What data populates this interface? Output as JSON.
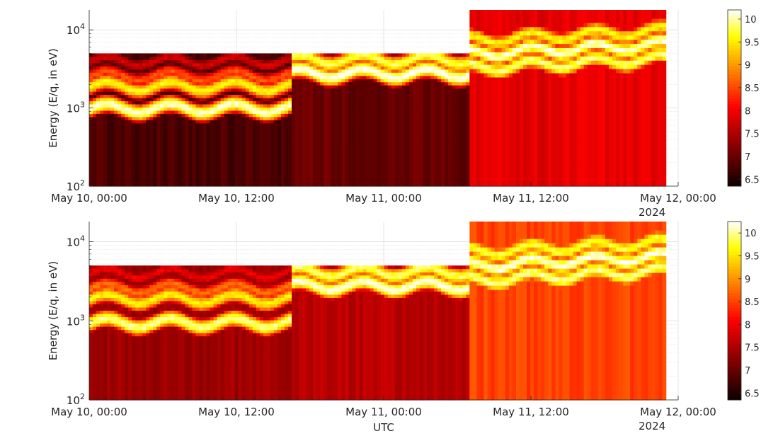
{
  "chart_data": [
    {
      "type": "heatmap",
      "title": "",
      "ylabel": "Energy (E/q, in eV)",
      "xlabel": "",
      "y_scale": "log",
      "ylim": [
        100,
        18000
      ],
      "y_ticks": [
        {
          "value": 100,
          "base": "10",
          "exp": "2"
        },
        {
          "value": 1000,
          "base": "10",
          "exp": "3"
        },
        {
          "value": 10000,
          "base": "10",
          "exp": "4"
        }
      ],
      "x_ticks": [
        "May 10, 00:00",
        "May 10, 12:00",
        "May 11, 00:00",
        "May 11, 12:00",
        "May 12, 00:00"
      ],
      "x_year_label": "2024",
      "xlim": [
        "2024-05-10 00:00",
        "2024-05-12 00:00"
      ],
      "grid": true,
      "colormap": "hot",
      "colorbar": {
        "ticks": [
          "6.5",
          "7",
          "7.5",
          "8",
          "8.5",
          "9",
          "9.5",
          "10"
        ],
        "range": [
          6.35,
          10.2
        ]
      },
      "segments": [
        {
          "x_start": "2024-05-10 00:00",
          "x_end": "2024-05-10 16:30",
          "emax": 5000,
          "bands": [
            [
              1000,
              10.1
            ],
            [
              1900,
              9.6
            ],
            [
              2600,
              8.6
            ],
            [
              4000,
              7.8
            ]
          ],
          "background": 6.8
        },
        {
          "x_start": "2024-05-10 16:30",
          "x_end": "2024-05-11 07:00",
          "emax": 5000,
          "bands": [
            [
              2800,
              10.2
            ],
            [
              4200,
              9.8
            ]
          ],
          "background": 7.0
        },
        {
          "x_start": "2024-05-11 07:00",
          "x_end": "2024-05-11 23:00",
          "emax": 18000,
          "bands": [
            [
              3300,
              9.9
            ],
            [
              5000,
              10.1
            ],
            [
              7500,
              9.6
            ]
          ],
          "background": 7.9
        }
      ]
    },
    {
      "type": "heatmap",
      "title": "",
      "ylabel": "Energy (E/q, in eV)",
      "xlabel": "UTC",
      "y_scale": "log",
      "ylim": [
        100,
        18000
      ],
      "y_ticks": [
        {
          "value": 100,
          "base": "10",
          "exp": "2"
        },
        {
          "value": 1000,
          "base": "10",
          "exp": "3"
        },
        {
          "value": 10000,
          "base": "10",
          "exp": "4"
        }
      ],
      "x_ticks": [
        "May 10, 00:00",
        "May 10, 12:00",
        "May 11, 00:00",
        "May 11, 12:00",
        "May 12, 00:00"
      ],
      "x_year_label": "2024",
      "xlim": [
        "2024-05-10 00:00",
        "2024-05-12 00:00"
      ],
      "grid": true,
      "colormap": "hot",
      "colorbar": {
        "ticks": [
          "6.5",
          "7",
          "7.5",
          "8",
          "8.5",
          "9",
          "9.5",
          "10"
        ],
        "range": [
          6.35,
          10.25
        ]
      },
      "segments": [
        {
          "x_start": "2024-05-10 00:00",
          "x_end": "2024-05-10 16:30",
          "emax": 5000,
          "bands": [
            [
              950,
              10.0
            ],
            [
              1900,
              9.6
            ],
            [
              2600,
              8.8
            ],
            [
              4000,
              8.0
            ]
          ],
          "background": 7.4
        },
        {
          "x_start": "2024-05-10 16:30",
          "x_end": "2024-05-11 07:00",
          "emax": 5000,
          "bands": [
            [
              2800,
              10.2
            ],
            [
              4200,
              9.9
            ]
          ],
          "background": 7.6
        },
        {
          "x_start": "2024-05-11 07:00",
          "x_end": "2024-05-11 23:00",
          "emax": 18000,
          "bands": [
            [
              3300,
              10.0
            ],
            [
              5000,
              10.2
            ],
            [
              7500,
              9.8
            ]
          ],
          "background": 8.5
        }
      ]
    }
  ]
}
